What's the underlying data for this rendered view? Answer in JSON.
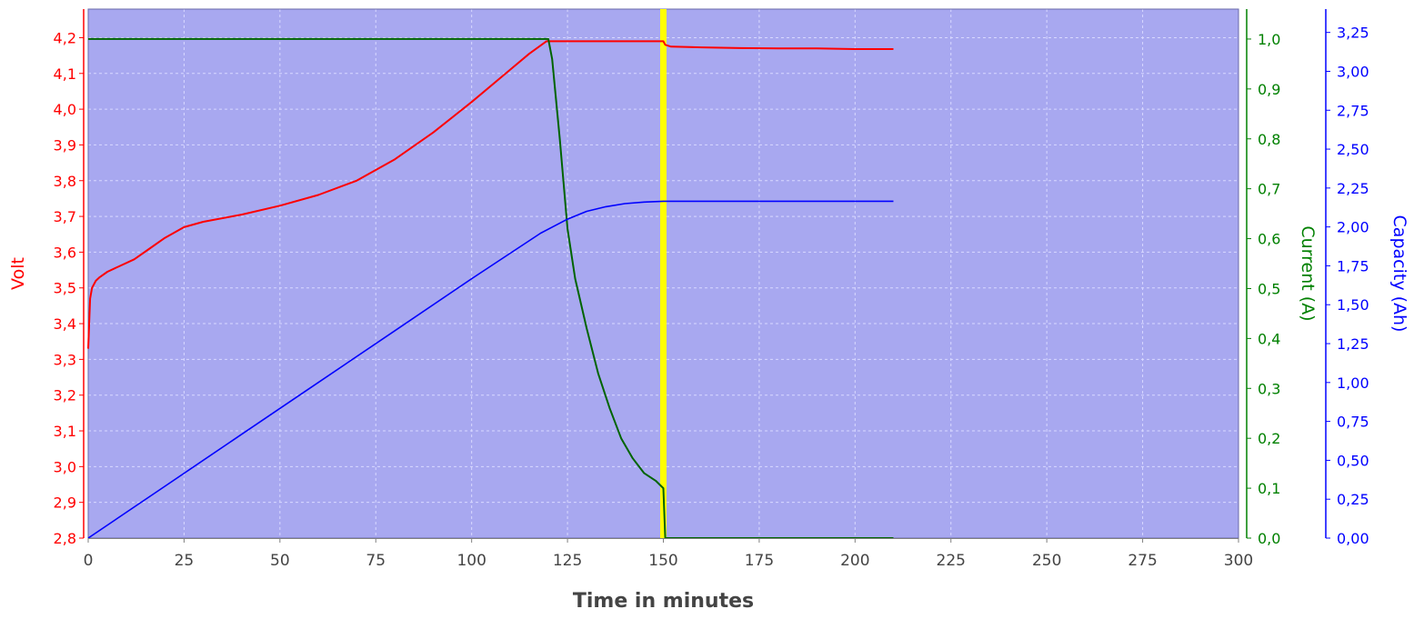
{
  "chart_data": {
    "type": "line",
    "xlabel": "Time in minutes",
    "xlim": [
      0,
      300
    ],
    "xticks": [
      0,
      25,
      50,
      75,
      100,
      125,
      150,
      175,
      200,
      225,
      250,
      275,
      300
    ],
    "xtick_labels": [
      "0",
      "25",
      "50",
      "75",
      "100",
      "125",
      "150",
      "175",
      "200",
      "225",
      "250",
      "275",
      "300"
    ],
    "grid": true,
    "background": "#a8a8f0",
    "marker_line": {
      "x": 150,
      "color": "#ffff00"
    },
    "axes": [
      {
        "id": "volt",
        "side": "left",
        "label": "Volt",
        "color": "#ff0000",
        "ylim": [
          2.8,
          4.28
        ],
        "ticks": [
          2.8,
          2.9,
          3.0,
          3.1,
          3.2,
          3.3,
          3.4,
          3.5,
          3.6,
          3.7,
          3.8,
          3.9,
          4.0,
          4.1,
          4.2
        ],
        "tick_labels": [
          "2,8",
          "2,9",
          "3,0",
          "3,1",
          "3,2",
          "3,3",
          "3,4",
          "3,5",
          "3,6",
          "3,7",
          "3,8",
          "3,9",
          "4,0",
          "4,1",
          "4,2"
        ]
      },
      {
        "id": "current",
        "side": "right",
        "label": "Current (A)",
        "color": "#008000",
        "ylim": [
          0,
          1.06
        ],
        "ticks": [
          0,
          0.1,
          0.2,
          0.3,
          0.4,
          0.5,
          0.6,
          0.7,
          0.8,
          0.9,
          1.0
        ],
        "tick_labels": [
          "0,0",
          "0,1",
          "0,2",
          "0,3",
          "0,4",
          "0,5",
          "0,6",
          "0,7",
          "0,8",
          "0,9",
          "1,0"
        ]
      },
      {
        "id": "capacity",
        "side": "right",
        "label": "Capacity (Ah)",
        "color": "#0000ff",
        "ylim": [
          0,
          3.4
        ],
        "ticks": [
          0,
          0.25,
          0.5,
          0.75,
          1.0,
          1.25,
          1.5,
          1.75,
          2.0,
          2.25,
          2.5,
          2.75,
          3.0,
          3.25
        ],
        "tick_labels": [
          "0,00",
          "0,25",
          "0,50",
          "0,75",
          "1,00",
          "1,25",
          "1,50",
          "1,75",
          "2,00",
          "2,25",
          "2,50",
          "2,75",
          "3,00",
          "3,25"
        ]
      }
    ],
    "series": [
      {
        "axis": "volt",
        "color": "#ff0000",
        "x": [
          0,
          0.5,
          1,
          2,
          3,
          5,
          8,
          12,
          16,
          20,
          25,
          30,
          40,
          50,
          60,
          70,
          80,
          90,
          100,
          110,
          115,
          119.5,
          120,
          130,
          140,
          150,
          150.5,
          152,
          160,
          170,
          180,
          190,
          200,
          210
        ],
        "y": [
          3.33,
          3.47,
          3.5,
          3.52,
          3.53,
          3.545,
          3.56,
          3.58,
          3.61,
          3.64,
          3.67,
          3.685,
          3.705,
          3.73,
          3.76,
          3.8,
          3.86,
          3.935,
          4.02,
          4.11,
          4.155,
          4.19,
          4.19,
          4.19,
          4.19,
          4.19,
          4.18,
          4.175,
          4.173,
          4.171,
          4.17,
          4.17,
          4.168,
          4.168
        ]
      },
      {
        "axis": "current",
        "color": "#006400",
        "x": [
          0,
          119,
          120,
          121,
          123,
          125,
          127,
          130,
          133,
          136,
          139,
          142,
          145,
          148,
          150,
          150.5,
          210
        ],
        "y": [
          1.0,
          1.0,
          1.0,
          0.96,
          0.8,
          0.62,
          0.52,
          0.42,
          0.33,
          0.26,
          0.2,
          0.16,
          0.13,
          0.115,
          0.1,
          0.0,
          0.0
        ]
      },
      {
        "axis": "capacity",
        "color": "#0000ff",
        "x": [
          0,
          20,
          40,
          60,
          80,
          100,
          118,
          125,
          130,
          135,
          140,
          145,
          150,
          160,
          180,
          210
        ],
        "y": [
          0,
          0.333,
          0.667,
          1.0,
          1.333,
          1.667,
          1.96,
          2.05,
          2.1,
          2.13,
          2.15,
          2.16,
          2.165,
          2.165,
          2.165,
          2.165
        ]
      }
    ]
  }
}
